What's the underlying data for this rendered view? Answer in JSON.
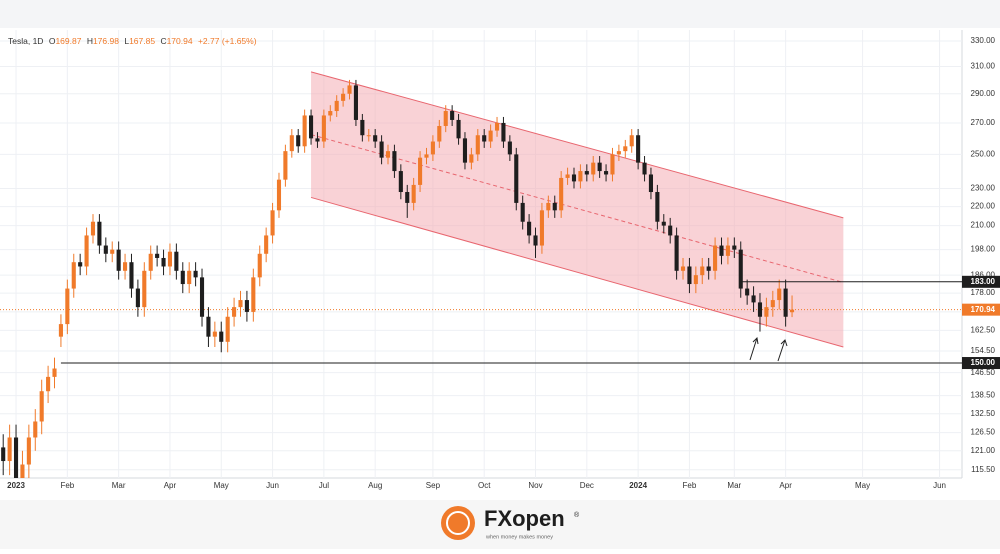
{
  "chart_data": {
    "type": "candlestick",
    "legend": {
      "symbol": "Tesla, 1D",
      "o": "O",
      "h": "H",
      "l": "L",
      "c": "C",
      "change": "+2.77 (+1.65%)"
    },
    "categories": [
      null,
      null,
      "2023",
      null,
      null,
      null,
      null,
      null,
      null,
      null,
      "Feb",
      null,
      null,
      null,
      null,
      null,
      null,
      null,
      "Mar",
      null,
      null,
      null,
      null,
      null,
      null,
      null,
      "Apr",
      null,
      null,
      null,
      null,
      null,
      null,
      null,
      "May",
      null,
      null,
      null,
      null,
      null,
      null,
      null,
      "Jun",
      null,
      null,
      null,
      null,
      null,
      null,
      null,
      "Jul",
      null,
      null,
      null,
      null,
      null,
      null,
      null,
      "Aug",
      null,
      null,
      null,
      null,
      null,
      null,
      null,
      null,
      "Sep",
      null,
      null,
      null,
      null,
      null,
      null,
      null,
      "Oct",
      null,
      null,
      null,
      null,
      null,
      null,
      null,
      "Nov",
      null,
      null,
      null,
      null,
      null,
      null,
      null,
      "Dec",
      null,
      null,
      null,
      null,
      null,
      null,
      null,
      "2024",
      null,
      null,
      null,
      null,
      null,
      null,
      null,
      "Feb",
      null,
      null,
      null,
      null,
      null,
      null,
      "Mar",
      null,
      null,
      null,
      null,
      null,
      null,
      null,
      "Apr",
      null,
      null,
      null,
      null,
      null,
      null,
      null,
      null,
      null,
      null,
      null,
      "May",
      null,
      null,
      null,
      null,
      null,
      null,
      null,
      null,
      null,
      null,
      null,
      "Jun",
      null,
      null,
      null
    ],
    "open": [
      122,
      118,
      125,
      113,
      117,
      125,
      130,
      140,
      145,
      160,
      165,
      180,
      192,
      190,
      205,
      212,
      200,
      196,
      198,
      188,
      192,
      180,
      172,
      188,
      196,
      194,
      190,
      197,
      188,
      182,
      188,
      185,
      168,
      160,
      162,
      158,
      168,
      172,
      175,
      170,
      185,
      196,
      205,
      218,
      235,
      252,
      262,
      255,
      275,
      260,
      258,
      275,
      278,
      285,
      290,
      296,
      272,
      262,
      262,
      258,
      248,
      252,
      240,
      228,
      222,
      232,
      248,
      250,
      258,
      268,
      278,
      272,
      260,
      245,
      250,
      262,
      258,
      265,
      270,
      258,
      250,
      222,
      212,
      205,
      200,
      218,
      222,
      218,
      236,
      238,
      234,
      240,
      238,
      245,
      240,
      238,
      250,
      252,
      255,
      262,
      245,
      238,
      228,
      212,
      210,
      205,
      188,
      190,
      182,
      186,
      190,
      188,
      200,
      195,
      200,
      198,
      180,
      177,
      174,
      168,
      172,
      175,
      180,
      169.87,
      null,
      null,
      null,
      null,
      null,
      null,
      null,
      null,
      null,
      null,
      null,
      null,
      null,
      null,
      null,
      null,
      null,
      null,
      null,
      null,
      null,
      null,
      null,
      null,
      null,
      null
    ],
    "high": [
      126,
      129,
      129,
      121,
      129,
      134,
      144,
      149,
      152,
      169,
      184,
      196,
      196,
      209,
      216,
      216,
      204,
      202,
      202,
      196,
      196,
      184,
      192,
      200,
      200,
      198,
      201,
      201,
      192,
      192,
      192,
      189,
      172,
      166,
      166,
      172,
      176,
      179,
      179,
      189,
      200,
      209,
      222,
      239,
      256,
      266,
      266,
      279,
      279,
      264,
      279,
      282,
      289,
      294,
      300,
      300,
      276,
      266,
      266,
      262,
      256,
      256,
      244,
      232,
      236,
      252,
      254,
      262,
      272,
      282,
      282,
      276,
      264,
      254,
      266,
      266,
      269,
      274,
      274,
      262,
      254,
      226,
      216,
      209,
      222,
      226,
      226,
      240,
      242,
      242,
      244,
      244,
      249,
      249,
      244,
      254,
      256,
      259,
      266,
      266,
      249,
      242,
      232,
      216,
      214,
      209,
      194,
      194,
      190,
      194,
      194,
      204,
      204,
      204,
      204,
      202,
      184,
      181,
      178,
      176,
      179,
      184,
      184,
      176.98,
      null,
      null,
      null,
      null,
      null,
      null,
      null,
      null,
      null,
      null,
      null,
      null,
      null,
      null,
      null,
      null,
      null,
      null,
      null,
      null,
      null,
      null,
      null,
      null,
      null,
      null
    ],
    "low": [
      114,
      114,
      109,
      110,
      113,
      121,
      126,
      136,
      141,
      156,
      161,
      176,
      186,
      186,
      201,
      196,
      192,
      192,
      184,
      184,
      176,
      168,
      168,
      184,
      190,
      186,
      186,
      184,
      178,
      178,
      181,
      164,
      156,
      156,
      154,
      154,
      164,
      168,
      166,
      166,
      181,
      192,
      201,
      214,
      231,
      248,
      251,
      251,
      256,
      254,
      254,
      271,
      274,
      281,
      286,
      268,
      258,
      258,
      254,
      244,
      244,
      236,
      224,
      214,
      218,
      228,
      244,
      246,
      254,
      264,
      268,
      256,
      241,
      241,
      246,
      254,
      254,
      261,
      254,
      246,
      218,
      208,
      201,
      194,
      196,
      214,
      214,
      214,
      232,
      230,
      230,
      234,
      234,
      236,
      234,
      234,
      246,
      248,
      251,
      241,
      234,
      224,
      208,
      206,
      201,
      184,
      184,
      178,
      178,
      182,
      184,
      184,
      191,
      191,
      194,
      176,
      173,
      170,
      162,
      164,
      168,
      171,
      164,
      167.85,
      null,
      null,
      null,
      null,
      null,
      null,
      null,
      null,
      null,
      null,
      null,
      null,
      null,
      null,
      null,
      null,
      null,
      null,
      null,
      null,
      null,
      null,
      null,
      null,
      null,
      null
    ],
    "close": [
      118,
      125,
      113,
      117,
      125,
      130,
      140,
      145,
      148,
      165,
      180,
      192,
      190,
      205,
      212,
      200,
      196,
      198,
      188,
      192,
      180,
      172,
      188,
      196,
      194,
      190,
      197,
      188,
      182,
      188,
      185,
      168,
      160,
      162,
      158,
      168,
      172,
      175,
      170,
      185,
      196,
      205,
      218,
      235,
      252,
      262,
      255,
      275,
      260,
      258,
      275,
      278,
      285,
      290,
      296,
      272,
      262,
      262,
      258,
      248,
      252,
      240,
      228,
      222,
      232,
      248,
      250,
      258,
      268,
      278,
      272,
      260,
      245,
      250,
      262,
      258,
      265,
      270,
      258,
      250,
      222,
      212,
      205,
      200,
      218,
      222,
      218,
      236,
      238,
      234,
      240,
      238,
      245,
      240,
      238,
      250,
      252,
      255,
      262,
      245,
      238,
      228,
      212,
      210,
      205,
      188,
      190,
      182,
      186,
      190,
      188,
      200,
      195,
      200,
      198,
      180,
      177,
      174,
      168,
      172,
      175,
      180,
      168,
      170.94,
      null,
      null,
      null,
      null,
      null,
      null,
      null,
      null,
      null,
      null,
      null,
      null,
      null,
      null,
      null,
      null,
      null,
      null,
      null,
      null,
      null,
      null,
      null,
      null,
      null,
      null
    ],
    "up_color": "#f07a2a",
    "down_color": "#1e1e1e",
    "log": true,
    "grid": true,
    "ylim": [
      113.2,
      339
    ],
    "yticks": [
      {
        "value": 330,
        "label": "330.00"
      },
      {
        "value": 310,
        "label": "310.00"
      },
      {
        "value": 290,
        "label": "290.00"
      },
      {
        "value": 270,
        "label": "270.00"
      },
      {
        "value": 250,
        "label": "250.00"
      },
      {
        "value": 230,
        "label": "230.00"
      },
      {
        "value": 220,
        "label": "220.00"
      },
      {
        "value": 210,
        "label": "210.00"
      },
      {
        "value": 198,
        "label": "198.00"
      },
      {
        "value": 186,
        "label": "186.00"
      },
      {
        "value": 178,
        "label": "178.00"
      },
      {
        "value": 170,
        "label": "170.00"
      },
      {
        "value": 162.5,
        "label": "162.50"
      },
      {
        "value": 154.5,
        "label": "154.50"
      },
      {
        "value": 146.5,
        "label": "146.50"
      },
      {
        "value": 138.5,
        "label": "138.50"
      },
      {
        "value": 132.5,
        "label": "132.50"
      },
      {
        "value": 126.5,
        "label": "126.50"
      },
      {
        "value": 121,
        "label": "121.00"
      },
      {
        "value": 115.5,
        "label": "115.50"
      }
    ],
    "channel": {
      "start": 48,
      "end": 131,
      "upper": [
        306,
        214
      ],
      "lower": [
        225,
        156
      ],
      "color": "#f4a6ad"
    },
    "levels": [
      {
        "value": 183,
        "label": "183.00",
        "from": 115
      },
      {
        "value": 150,
        "label": "150.00",
        "from": 9
      }
    ],
    "price_line": {
      "value": 170.94,
      "label": "170.94",
      "color": "#f07a2a"
    }
  },
  "footer": {
    "brand": "FXopen",
    "mark": "®",
    "tagline": "when money makes money"
  }
}
